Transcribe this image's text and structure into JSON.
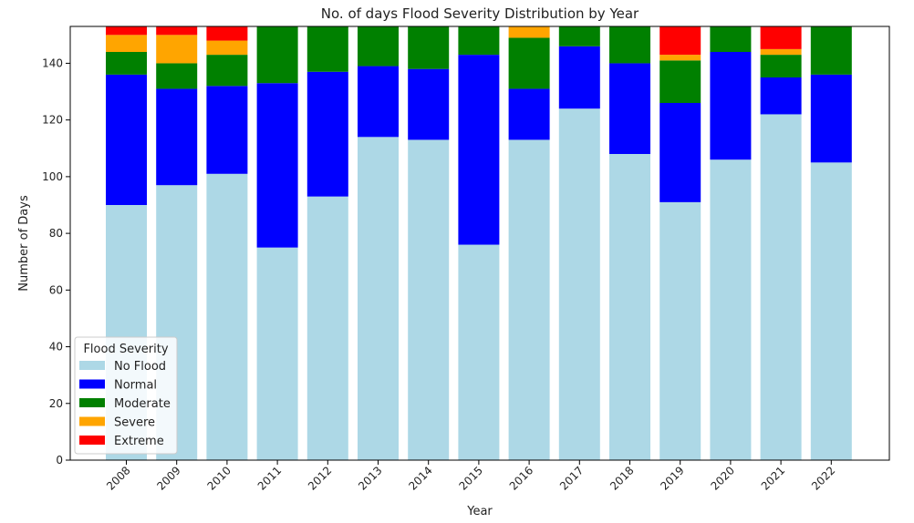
{
  "chart_data": {
    "type": "bar",
    "stacked": true,
    "title": "No. of days Flood Severity Distribution by Year",
    "xlabel": "Year",
    "ylabel": "Number of Days",
    "ylim": [
      0,
      153
    ],
    "yticks": [
      0,
      20,
      40,
      60,
      80,
      100,
      120,
      140
    ],
    "categories": [
      "2008",
      "2009",
      "2010",
      "2011",
      "2012",
      "2013",
      "2014",
      "2015",
      "2016",
      "2017",
      "2018",
      "2019",
      "2020",
      "2021",
      "2022"
    ],
    "legend": {
      "title": "Flood Severity",
      "position": "lower-left"
    },
    "series": [
      {
        "name": "No Flood",
        "color": "#add8e6",
        "values": [
          90,
          97,
          101,
          75,
          93,
          114,
          113,
          76,
          113,
          124,
          108,
          91,
          106,
          122,
          105
        ]
      },
      {
        "name": "Normal",
        "color": "#0000ff",
        "values": [
          46,
          34,
          31,
          58,
          44,
          25,
          25,
          67,
          18,
          22,
          32,
          35,
          38,
          13,
          31
        ]
      },
      {
        "name": "Moderate",
        "color": "#008000",
        "values": [
          8,
          9,
          11,
          20,
          16,
          14,
          15,
          10,
          18,
          7,
          13,
          15,
          9,
          8,
          17
        ]
      },
      {
        "name": "Severe",
        "color": "#ffa500",
        "values": [
          6,
          10,
          5,
          0,
          0,
          0,
          0,
          0,
          4,
          0,
          0,
          2,
          0,
          2,
          0
        ]
      },
      {
        "name": "Extreme",
        "color": "#ff0000",
        "values": [
          3,
          3,
          5,
          0,
          0,
          0,
          0,
          0,
          0,
          0,
          0,
          10,
          0,
          8,
          0
        ]
      }
    ]
  }
}
